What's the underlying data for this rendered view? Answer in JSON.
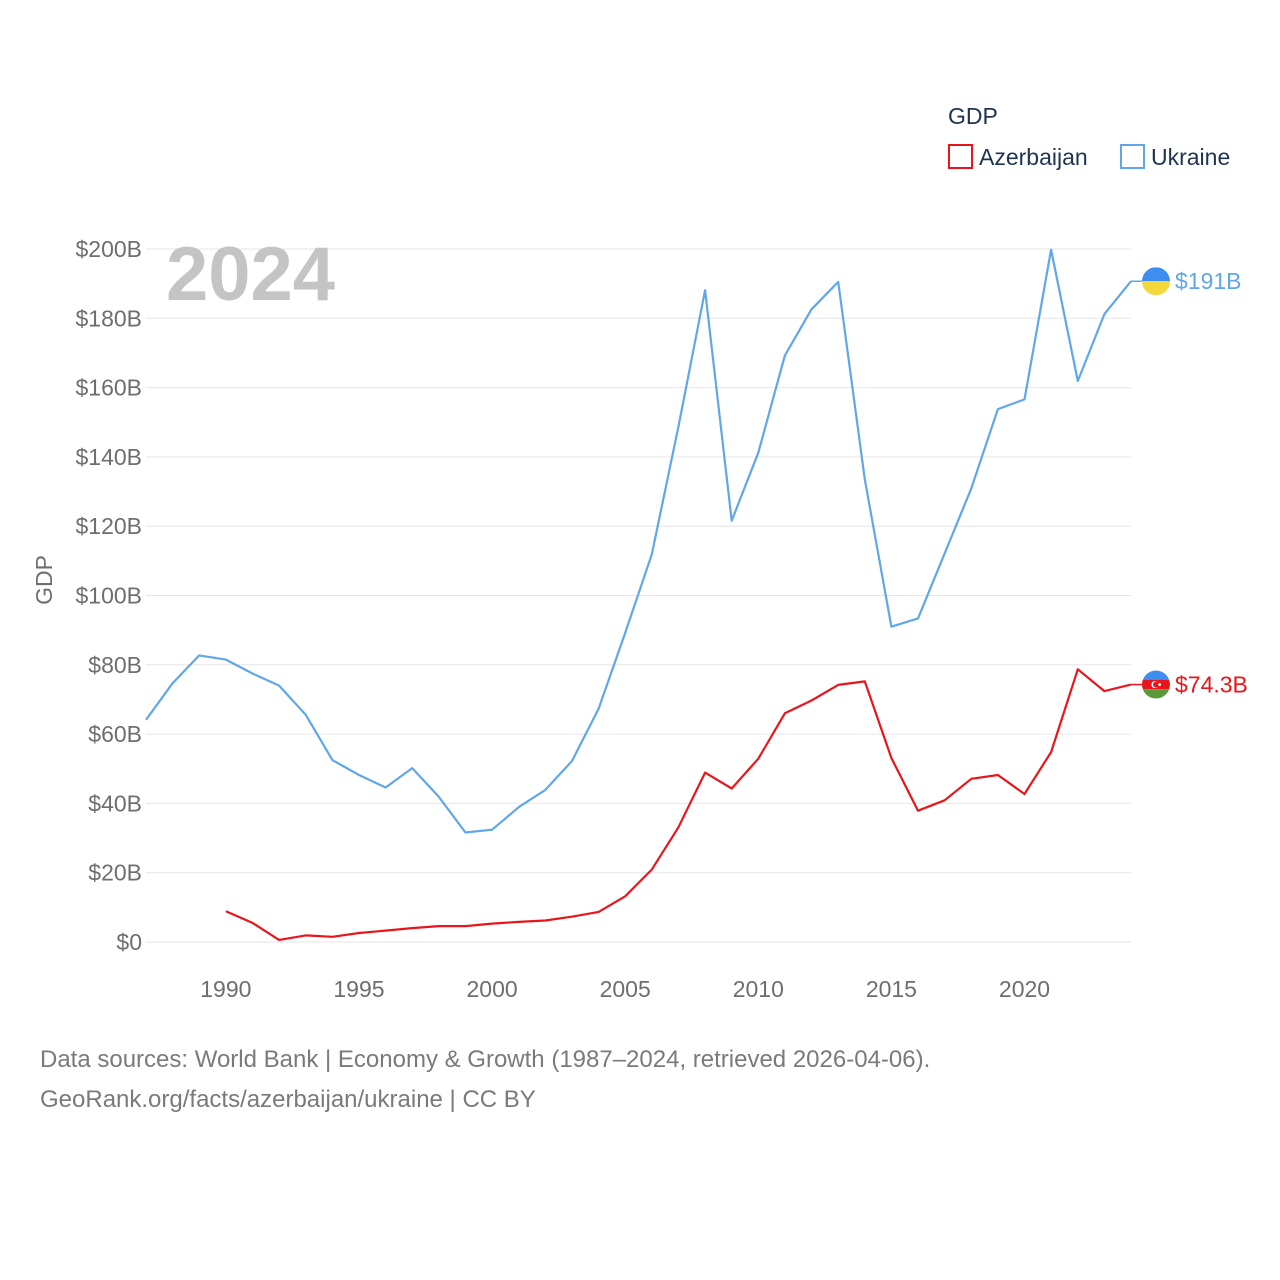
{
  "chart_data": {
    "type": "line",
    "ylabel": "GDP",
    "xlabel": "",
    "ylim": [
      0,
      200
    ],
    "xlim": [
      1987,
      2024
    ],
    "y_ticks": [
      0,
      20,
      40,
      60,
      80,
      100,
      120,
      140,
      160,
      180,
      200
    ],
    "y_tick_labels": [
      "$0",
      "$20B",
      "$40B",
      "$60B",
      "$80B",
      "$100B",
      "$120B",
      "$140B",
      "$160B",
      "$180B",
      "$200B"
    ],
    "x_ticks": [
      1990,
      1995,
      2000,
      2005,
      2010,
      2015,
      2020
    ],
    "x_tick_labels": [
      "1990",
      "1995",
      "2000",
      "2005",
      "2010",
      "2015",
      "2020"
    ],
    "grid": true,
    "year_stamp": "2024",
    "legend": {
      "title": "GDP",
      "position": "top-right"
    },
    "series": [
      {
        "name": "Azerbaijan",
        "color": "#e8161b",
        "end_label": "$74.3B",
        "flag": "azerbaijan-flag",
        "x": [
          1990,
          1991,
          1992,
          1993,
          1994,
          1995,
          1996,
          1997,
          1998,
          1999,
          2000,
          2001,
          2002,
          2003,
          2004,
          2005,
          2006,
          2007,
          2008,
          2009,
          2010,
          2011,
          2012,
          2013,
          2014,
          2015,
          2016,
          2017,
          2018,
          2019,
          2020,
          2021,
          2022,
          2023,
          2024
        ],
        "values": [
          8.9,
          5.5,
          0.6,
          1.9,
          1.5,
          2.6,
          3.3,
          4.0,
          4.6,
          4.6,
          5.3,
          5.8,
          6.2,
          7.3,
          8.7,
          13.2,
          20.9,
          33.1,
          48.9,
          44.3,
          52.9,
          66.0,
          69.7,
          74.2,
          75.2,
          53.1,
          37.9,
          40.9,
          47.1,
          48.2,
          42.7,
          54.8,
          78.7,
          72.4,
          74.3
        ]
      },
      {
        "name": "Ukraine",
        "color": "#5fa7e8",
        "end_label": "$191B",
        "flag": "ukraine-flag",
        "x": [
          1987,
          1988,
          1989,
          1990,
          1991,
          1992,
          1993,
          1994,
          1995,
          1996,
          1997,
          1998,
          1999,
          2000,
          2001,
          2002,
          2003,
          2004,
          2005,
          2006,
          2007,
          2008,
          2009,
          2010,
          2011,
          2012,
          2013,
          2014,
          2015,
          2016,
          2017,
          2018,
          2019,
          2020,
          2021,
          2022,
          2023,
          2024
        ],
        "values": [
          64.1,
          74.7,
          82.7,
          81.5,
          77.5,
          74.0,
          65.6,
          52.5,
          48.2,
          44.6,
          50.2,
          41.9,
          31.6,
          32.4,
          38.9,
          43.9,
          52.2,
          67.3,
          89.2,
          111.9,
          148.7,
          188.1,
          121.6,
          141.2,
          169.3,
          182.6,
          190.5,
          133.5,
          91.0,
          93.4,
          112.1,
          130.9,
          153.8,
          156.6,
          199.8,
          161.9,
          181.2,
          190.7
        ]
      }
    ]
  },
  "footer": {
    "line1": "Data sources: World Bank | Economy & Growth (1987–2024, retrieved 2026-04-06).",
    "line2": "GeoRank.org/facts/azerbaijan/ukraine | CC BY"
  }
}
